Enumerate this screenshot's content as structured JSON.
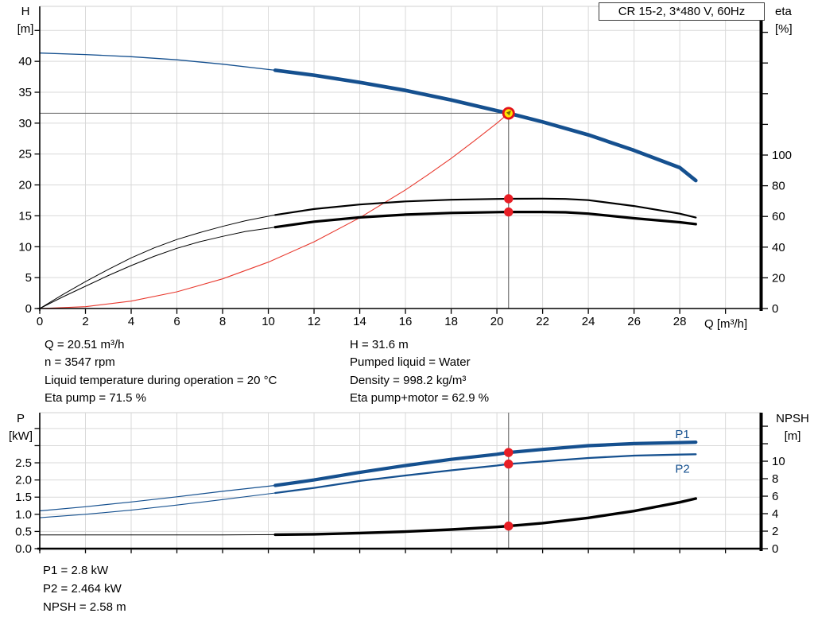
{
  "header": {
    "title_box": "CR 15-2, 3*480 V, 60Hz"
  },
  "colors": {
    "blue": "#15508f",
    "black": "#000000",
    "red_curve": "#e8392e",
    "red_dot": "#e81e25",
    "duty_fill": "#ffe400",
    "duty_ring": "#e3131b",
    "duty_arrow": "#7d6a00",
    "grid": "#d9d9d9",
    "ref_line": "#707070",
    "axis": "#000000",
    "label_blue": "#15508f"
  },
  "annotations": {
    "duty_left": [
      "Q = 20.51 m³/h",
      "n = 3547 rpm",
      "Liquid temperature during operation = 20 °C",
      "Eta pump = 71.5 %"
    ],
    "duty_right": [
      "H = 31.6 m",
      "Pumped liquid = Water",
      "Density = 998.2 kg/m³",
      "Eta pump+motor = 62.9 %"
    ],
    "power_block": [
      "P1 = 2.8 kW",
      "P2 = 2.464 kW",
      "NPSH = 2.58 m"
    ]
  },
  "chart_data": [
    {
      "id": "hq_eta",
      "type": "line",
      "title": "CR 15-2, 3*480 V, 60Hz",
      "x_axis": {
        "title": "Q [m³/h]",
        "min": 0,
        "max": 31.56,
        "tick_marks": [
          0,
          2,
          4,
          6,
          8,
          10,
          12,
          14,
          16,
          18,
          20,
          22,
          24,
          26,
          28,
          30
        ],
        "tick_labels": [
          {
            "v": 0,
            "t": "0"
          },
          {
            "v": 2,
            "t": "2"
          },
          {
            "v": 4,
            "t": "4"
          },
          {
            "v": 6,
            "t": "6"
          },
          {
            "v": 8,
            "t": "8"
          },
          {
            "v": 10,
            "t": "10"
          },
          {
            "v": 12,
            "t": "12"
          },
          {
            "v": 14,
            "t": "14"
          },
          {
            "v": 16,
            "t": "16"
          },
          {
            "v": 18,
            "t": "18"
          },
          {
            "v": 20,
            "t": "20"
          },
          {
            "v": 22,
            "t": "22"
          },
          {
            "v": 24,
            "t": "24"
          },
          {
            "v": 26,
            "t": "26"
          },
          {
            "v": 28,
            "t": "28"
          }
        ],
        "grid": [
          2,
          4,
          6,
          8,
          10,
          12,
          14,
          16,
          18,
          20,
          22,
          24,
          26,
          28,
          30
        ]
      },
      "left_axis": {
        "label_lines": [
          "H",
          "[m]"
        ],
        "min": 0,
        "max": 48.9,
        "tick_marks": [
          0,
          5,
          10,
          15,
          20,
          25,
          30,
          35,
          40,
          45
        ],
        "tick_labels": [
          {
            "v": 0,
            "t": "0"
          },
          {
            "v": 5,
            "t": "5"
          },
          {
            "v": 10,
            "t": "10"
          },
          {
            "v": 15,
            "t": "15"
          },
          {
            "v": 20,
            "t": "20"
          },
          {
            "v": 25,
            "t": "25"
          },
          {
            "v": 30,
            "t": "30"
          },
          {
            "v": 35,
            "t": "35"
          },
          {
            "v": 40,
            "t": "40"
          }
        ],
        "grid": [
          5,
          10,
          15,
          20,
          25,
          30,
          35,
          40,
          45
        ]
      },
      "right_axis": {
        "label_lines": [
          "eta",
          "[%]"
        ],
        "min": 0,
        "max": 196.9,
        "tick_marks": [
          0,
          20,
          40,
          60,
          80,
          100,
          120,
          140,
          160,
          180
        ],
        "tick_labels": [
          {
            "v": 0,
            "t": "0"
          },
          {
            "v": 20,
            "t": "20"
          },
          {
            "v": 40,
            "t": "40"
          },
          {
            "v": 60,
            "t": "60"
          },
          {
            "v": 80,
            "t": "80"
          },
          {
            "v": 100,
            "t": "100"
          }
        ],
        "grid": []
      },
      "series": [
        {
          "name": "system-curve",
          "axis": "L",
          "color": "#e8392e",
          "width": 1.1,
          "points": [
            [
              0,
              0
            ],
            [
              2,
              0.3
            ],
            [
              4,
              1.2
            ],
            [
              6,
              2.7
            ],
            [
              8,
              4.8
            ],
            [
              10,
              7.5
            ],
            [
              12,
              10.8
            ],
            [
              14,
              14.7
            ],
            [
              16,
              19.2
            ],
            [
              17,
              21.7
            ],
            [
              18,
              24.3
            ],
            [
              19,
              27.1
            ],
            [
              20,
              30.0
            ],
            [
              20.51,
              31.6
            ]
          ]
        },
        {
          "name": "eta-pump-curve-thin",
          "axis": "R",
          "color": "#000000",
          "width": 1,
          "points": [
            [
              0,
              0
            ],
            [
              1,
              9
            ],
            [
              2,
              17.5
            ],
            [
              3,
              25.5
            ],
            [
              4,
              33
            ],
            [
              5,
              39.5
            ],
            [
              6,
              45
            ],
            [
              7,
              49.5
            ],
            [
              8,
              53.5
            ],
            [
              9,
              57.2
            ],
            [
              10.3,
              61
            ]
          ]
        },
        {
          "name": "eta-pump-curve",
          "axis": "R",
          "color": "#000000",
          "width": 2.2,
          "points": [
            [
              10.3,
              61
            ],
            [
              12,
              64.8
            ],
            [
              14,
              67.8
            ],
            [
              16,
              69.8
            ],
            [
              18,
              70.9
            ],
            [
              20,
              71.4
            ],
            [
              20.51,
              71.5
            ],
            [
              22,
              71.6
            ],
            [
              23,
              71.4
            ],
            [
              24,
              70.6
            ],
            [
              26,
              66.8
            ],
            [
              28,
              61.8
            ],
            [
              28.7,
              59.3
            ]
          ]
        },
        {
          "name": "eta-pump-motor-curve-thin",
          "axis": "R",
          "color": "#000000",
          "width": 1,
          "points": [
            [
              0,
              0
            ],
            [
              1,
              7.5
            ],
            [
              2,
              14.5
            ],
            [
              3,
              21.5
            ],
            [
              4,
              28
            ],
            [
              5,
              34
            ],
            [
              6,
              39.2
            ],
            [
              7,
              43.5
            ],
            [
              8,
              47
            ],
            [
              9,
              50.2
            ],
            [
              10.3,
              53
            ]
          ]
        },
        {
          "name": "eta-pump-motor-curve",
          "axis": "R",
          "color": "#000000",
          "width": 3.2,
          "points": [
            [
              10.3,
              53
            ],
            [
              12,
              56.6
            ],
            [
              14,
              59.4
            ],
            [
              16,
              61.2
            ],
            [
              18,
              62.3
            ],
            [
              20,
              62.8
            ],
            [
              20.51,
              62.9
            ],
            [
              22,
              62.9
            ],
            [
              23,
              62.7
            ],
            [
              24,
              61.8
            ],
            [
              26,
              58.8
            ],
            [
              28,
              56.2
            ],
            [
              28.7,
              55
            ]
          ]
        },
        {
          "name": "pump-curve-thin",
          "axis": "L",
          "color": "#15508f",
          "width": 1.3,
          "points": [
            [
              0,
              41.35
            ],
            [
              2,
              41.1
            ],
            [
              4,
              40.75
            ],
            [
              6,
              40.25
            ],
            [
              8,
              39.55
            ],
            [
              10.3,
              38.55
            ]
          ]
        },
        {
          "name": "pump-curve",
          "axis": "L",
          "color": "#15508f",
          "width": 4.6,
          "points": [
            [
              10.3,
              38.55
            ],
            [
              12,
              37.75
            ],
            [
              14,
              36.6
            ],
            [
              16,
              35.3
            ],
            [
              18,
              33.75
            ],
            [
              20,
              32.0
            ],
            [
              20.51,
              31.6
            ],
            [
              22,
              30.2
            ],
            [
              24,
              28.1
            ],
            [
              26,
              25.6
            ],
            [
              28,
              22.8
            ],
            [
              28.7,
              20.7
            ]
          ]
        }
      ],
      "ref_lines": [
        {
          "type": "h",
          "axis": "L",
          "value": 31.6,
          "q1": 0,
          "q2": 20.51
        },
        {
          "type": "v",
          "axis": "L",
          "q": 20.51,
          "v1": 0,
          "v2": 31.6
        }
      ],
      "markers": [
        {
          "name": "eta-pump-point",
          "style": "dot",
          "q": 20.51,
          "value": 71.5,
          "axis": "R"
        },
        {
          "name": "eta-pump-motor-point",
          "style": "dot",
          "q": 20.51,
          "value": 62.9,
          "axis": "R"
        },
        {
          "name": "duty-point",
          "style": "duty",
          "q": 20.51,
          "value": 31.6,
          "axis": "L"
        }
      ],
      "curve_labels": []
    },
    {
      "id": "p_npsh",
      "type": "line",
      "title": "",
      "x_axis": {
        "title": "",
        "min": 0,
        "max": 31.56,
        "tick_marks": [
          0,
          2,
          4,
          6,
          8,
          10,
          12,
          14,
          16,
          18,
          20,
          22,
          24,
          26,
          28,
          30
        ],
        "tick_labels": [],
        "grid": [
          2,
          4,
          6,
          8,
          10,
          12,
          14,
          16,
          18,
          20,
          22,
          24,
          26,
          28,
          30
        ]
      },
      "left_axis": {
        "label_lines": [
          "P",
          "[kW]"
        ],
        "min": 0,
        "max": 3.96,
        "tick_marks": [
          0,
          0.5,
          1,
          1.5,
          2,
          2.5,
          3,
          3.5
        ],
        "tick_labels": [
          {
            "v": 0,
            "t": "0.0"
          },
          {
            "v": 0.5,
            "t": "0.5"
          },
          {
            "v": 1,
            "t": "1.0"
          },
          {
            "v": 1.5,
            "t": "1.5"
          },
          {
            "v": 2,
            "t": "2.0"
          },
          {
            "v": 2.5,
            "t": "2.5"
          }
        ],
        "grid": [
          0.5,
          1,
          1.5,
          2,
          2.5,
          3,
          3.5
        ]
      },
      "right_axis": {
        "label_lines": [
          "NPSH",
          "[m]"
        ],
        "min": 0,
        "max": 15.55,
        "tick_marks": [
          0,
          2,
          4,
          6,
          8,
          10,
          12,
          14
        ],
        "tick_labels": [
          {
            "v": 0,
            "t": "0"
          },
          {
            "v": 2,
            "t": "2"
          },
          {
            "v": 4,
            "t": "4"
          },
          {
            "v": 6,
            "t": "6"
          },
          {
            "v": 8,
            "t": "8"
          },
          {
            "v": 10,
            "t": "10"
          }
        ],
        "grid": []
      },
      "series": [
        {
          "name": "npsh-curve-thin",
          "axis": "R",
          "color": "#000000",
          "width": 1,
          "points": [
            [
              0,
              1.57
            ],
            [
              4,
              1.56
            ],
            [
              8,
              1.57
            ],
            [
              10.3,
              1.6
            ]
          ]
        },
        {
          "name": "npsh-curve",
          "axis": "R",
          "color": "#000000",
          "width": 3.4,
          "points": [
            [
              10.3,
              1.6
            ],
            [
              12,
              1.65
            ],
            [
              14,
              1.78
            ],
            [
              16,
              1.95
            ],
            [
              18,
              2.18
            ],
            [
              20,
              2.48
            ],
            [
              20.51,
              2.58
            ],
            [
              22,
              2.92
            ],
            [
              24,
              3.52
            ],
            [
              26,
              4.3
            ],
            [
              28,
              5.3
            ],
            [
              28.7,
              5.73
            ]
          ]
        },
        {
          "name": "p2-curve-thin",
          "axis": "L",
          "color": "#15508f",
          "width": 1.1,
          "points": [
            [
              0,
              0.9
            ],
            [
              2,
              1.0
            ],
            [
              4,
              1.12
            ],
            [
              6,
              1.27
            ],
            [
              8,
              1.43
            ],
            [
              10.3,
              1.62
            ]
          ]
        },
        {
          "name": "p2-curve",
          "axis": "L",
          "color": "#15508f",
          "width": 2.3,
          "points": [
            [
              10.3,
              1.62
            ],
            [
              12,
              1.77
            ],
            [
              14,
              1.97
            ],
            [
              16,
              2.13
            ],
            [
              18,
              2.28
            ],
            [
              20,
              2.42
            ],
            [
              20.51,
              2.464
            ],
            [
              22,
              2.54
            ],
            [
              24,
              2.64
            ],
            [
              26,
              2.71
            ],
            [
              28,
              2.74
            ],
            [
              28.7,
              2.75
            ]
          ]
        },
        {
          "name": "p1-curve-thin",
          "axis": "L",
          "color": "#15508f",
          "width": 1.2,
          "points": [
            [
              0,
              1.1
            ],
            [
              2,
              1.22
            ],
            [
              4,
              1.36
            ],
            [
              6,
              1.51
            ],
            [
              8,
              1.67
            ],
            [
              10.3,
              1.84
            ]
          ]
        },
        {
          "name": "p1-curve",
          "axis": "L",
          "color": "#15508f",
          "width": 4.2,
          "points": [
            [
              10.3,
              1.84
            ],
            [
              12,
              2.0
            ],
            [
              14,
              2.22
            ],
            [
              16,
              2.42
            ],
            [
              18,
              2.6
            ],
            [
              20,
              2.75
            ],
            [
              20.51,
              2.8
            ],
            [
              22,
              2.89
            ],
            [
              24,
              3.0
            ],
            [
              26,
              3.06
            ],
            [
              28,
              3.09
            ],
            [
              28.7,
              3.1
            ]
          ]
        }
      ],
      "ref_lines": [
        {
          "type": "v",
          "axis": "L",
          "q": 20.51,
          "v1": 0,
          "v2": 3.96
        }
      ],
      "markers": [
        {
          "name": "p1-point",
          "style": "dot",
          "q": 20.51,
          "value": 2.8,
          "axis": "L"
        },
        {
          "name": "p2-point",
          "style": "dot",
          "q": 20.51,
          "value": 2.464,
          "axis": "L"
        },
        {
          "name": "npsh-point",
          "style": "dot",
          "q": 20.51,
          "value": 2.58,
          "axis": "R"
        }
      ],
      "curve_labels": [
        {
          "text": "P1",
          "q": 27.8,
          "value": 3.34,
          "axis": "L",
          "color": "#15508f",
          "name": "p1-curve-label"
        },
        {
          "text": "P2",
          "q": 27.8,
          "value": 2.33,
          "axis": "L",
          "color": "#15508f",
          "name": "p2-curve-label"
        }
      ]
    }
  ]
}
